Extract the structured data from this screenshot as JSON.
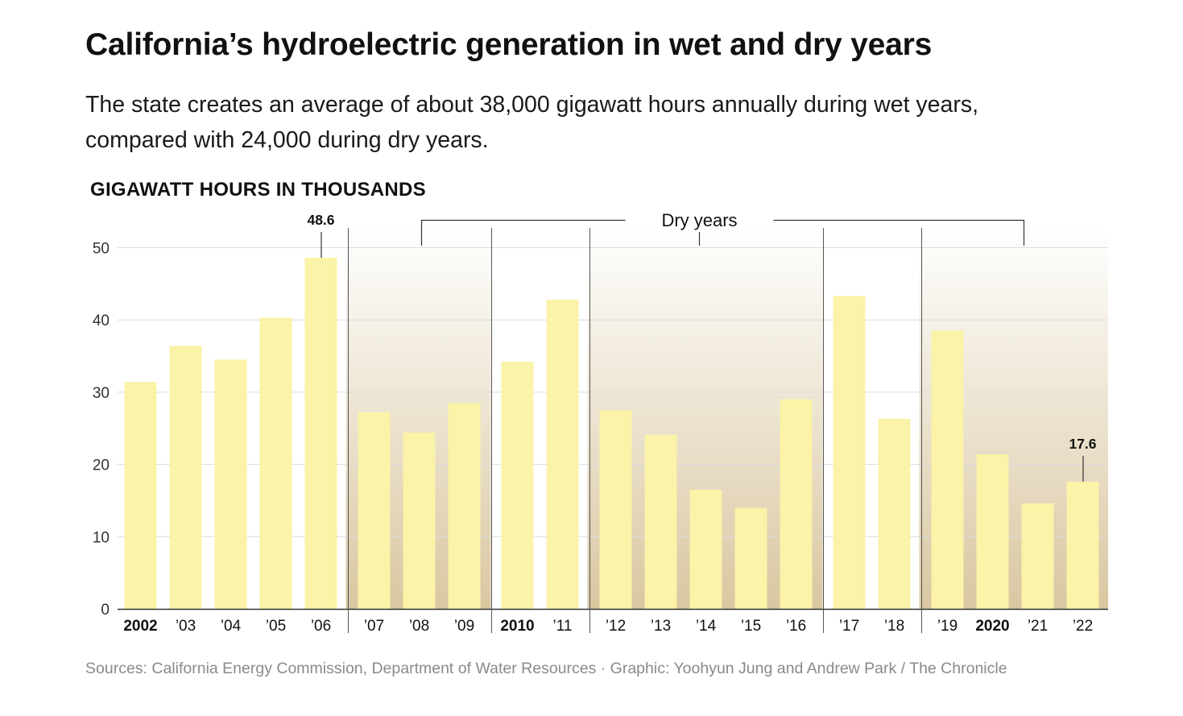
{
  "header": {
    "title": "California’s hydroelectric generation in wet and dry years",
    "subtitle_line1": "The state creates an average of about 38,000 gigawatt hours annually during wet years,",
    "subtitle_line2": "compared with 24,000 during dry years."
  },
  "footer": {
    "source": "Sources: California Energy Commission, Department of Water Resources · Graphic: Yoohyun Jung and Andrew Park / The Chronicle"
  },
  "chart_data": {
    "type": "bar",
    "ylabel": "GIGAWATT HOURS IN THOUSANDS",
    "ylim": [
      0,
      50
    ],
    "yticks": [
      0,
      10,
      20,
      30,
      40,
      50
    ],
    "grid": true,
    "categories": [
      "2002",
      "’03",
      "’04",
      "’05",
      "’06",
      "’07",
      "’08",
      "’09",
      "2010",
      "’11",
      "’12",
      "’13",
      "’14",
      "’15",
      "’16",
      "’17",
      "’18",
      "’19",
      "2020",
      "’21",
      "’22"
    ],
    "bold_categories": [
      "2002",
      "2010",
      "2020"
    ],
    "values": [
      31.4,
      36.4,
      34.5,
      40.3,
      48.6,
      27.2,
      24.4,
      28.5,
      34.2,
      42.8,
      27.5,
      24.1,
      16.5,
      14.0,
      29.0,
      43.3,
      26.3,
      38.5,
      21.4,
      14.6,
      17.6
    ],
    "annotations": [
      {
        "category": "’06",
        "text": "48.6"
      },
      {
        "category": "’22",
        "text": "17.6"
      }
    ],
    "dry_periods": [
      {
        "start": "’07",
        "end": "’09"
      },
      {
        "start": "’12",
        "end": "’16"
      },
      {
        "start": "’19",
        "end": "’22"
      }
    ],
    "dry_label": "Dry years",
    "colors": {
      "bar": "#faf3a8",
      "dry_shade_top": "#ffffff",
      "dry_shade_bottom": "#d9c7a1",
      "grid": "#dcdcdc",
      "text": "#111111"
    }
  }
}
